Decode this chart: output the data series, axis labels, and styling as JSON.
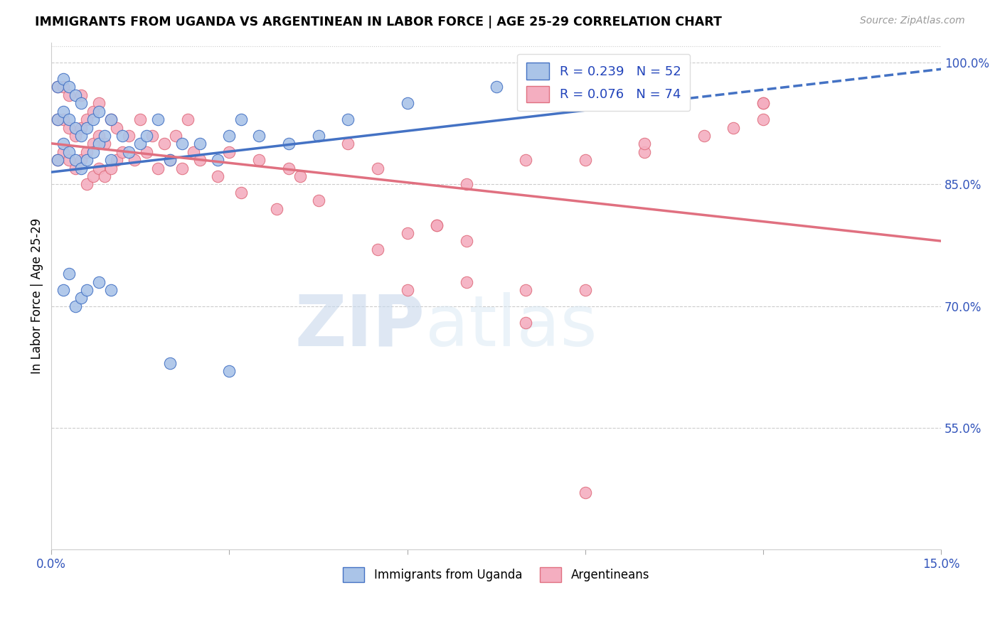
{
  "title": "IMMIGRANTS FROM UGANDA VS ARGENTINEAN IN LABOR FORCE | AGE 25-29 CORRELATION CHART",
  "source": "Source: ZipAtlas.com",
  "ylabel": "In Labor Force | Age 25-29",
  "x_min": 0.0,
  "x_max": 0.15,
  "y_min": 0.4,
  "y_max": 1.025,
  "x_ticks": [
    0.0,
    0.03,
    0.06,
    0.09,
    0.12,
    0.15
  ],
  "y_ticks_right": [
    0.55,
    0.7,
    0.85,
    1.0
  ],
  "y_tick_labels_right": [
    "55.0%",
    "70.0%",
    "85.0%",
    "100.0%"
  ],
  "color_uganda": "#aac4e8",
  "color_argentina": "#f4aec0",
  "color_line_uganda": "#4472c4",
  "color_line_argentina": "#e07080",
  "watermark_zip": "ZIP",
  "watermark_atlas": "atlas",
  "label_uganda": "Immigrants from Uganda",
  "label_argentina": "Argentineans",
  "uganda_x": [
    0.001,
    0.001,
    0.001,
    0.002,
    0.002,
    0.002,
    0.003,
    0.003,
    0.003,
    0.004,
    0.004,
    0.004,
    0.005,
    0.005,
    0.005,
    0.006,
    0.006,
    0.007,
    0.007,
    0.008,
    0.008,
    0.009,
    0.01,
    0.01,
    0.012,
    0.013,
    0.015,
    0.016,
    0.018,
    0.02,
    0.022,
    0.025,
    0.028,
    0.03,
    0.032,
    0.035,
    0.04,
    0.045,
    0.05,
    0.06,
    0.075,
    0.09,
    0.105,
    0.002,
    0.003,
    0.004,
    0.005,
    0.006,
    0.008,
    0.01,
    0.02,
    0.03
  ],
  "uganda_y": [
    0.88,
    0.93,
    0.97,
    0.9,
    0.94,
    0.98,
    0.89,
    0.93,
    0.97,
    0.88,
    0.92,
    0.96,
    0.87,
    0.91,
    0.95,
    0.88,
    0.92,
    0.89,
    0.93,
    0.9,
    0.94,
    0.91,
    0.88,
    0.93,
    0.91,
    0.89,
    0.9,
    0.91,
    0.93,
    0.88,
    0.9,
    0.9,
    0.88,
    0.91,
    0.93,
    0.91,
    0.9,
    0.91,
    0.93,
    0.95,
    0.97,
    0.97,
    0.95,
    0.72,
    0.74,
    0.7,
    0.71,
    0.72,
    0.73,
    0.72,
    0.63,
    0.62
  ],
  "argentina_x": [
    0.001,
    0.001,
    0.001,
    0.002,
    0.002,
    0.002,
    0.003,
    0.003,
    0.003,
    0.004,
    0.004,
    0.005,
    0.005,
    0.005,
    0.006,
    0.006,
    0.006,
    0.007,
    0.007,
    0.007,
    0.008,
    0.008,
    0.008,
    0.009,
    0.009,
    0.01,
    0.01,
    0.011,
    0.011,
    0.012,
    0.013,
    0.014,
    0.015,
    0.016,
    0.017,
    0.018,
    0.019,
    0.02,
    0.021,
    0.022,
    0.023,
    0.024,
    0.025,
    0.028,
    0.03,
    0.032,
    0.035,
    0.038,
    0.04,
    0.042,
    0.045,
    0.05,
    0.055,
    0.06,
    0.065,
    0.07,
    0.08,
    0.09,
    0.1,
    0.11,
    0.12,
    0.12,
    0.12,
    0.065,
    0.07,
    0.08,
    0.09,
    0.1,
    0.055,
    0.06,
    0.07,
    0.08,
    0.09,
    0.115
  ],
  "argentina_y": [
    0.88,
    0.93,
    0.97,
    0.89,
    0.93,
    0.97,
    0.88,
    0.92,
    0.96,
    0.87,
    0.91,
    0.88,
    0.92,
    0.96,
    0.85,
    0.89,
    0.93,
    0.86,
    0.9,
    0.94,
    0.87,
    0.91,
    0.95,
    0.86,
    0.9,
    0.87,
    0.93,
    0.88,
    0.92,
    0.89,
    0.91,
    0.88,
    0.93,
    0.89,
    0.91,
    0.87,
    0.9,
    0.88,
    0.91,
    0.87,
    0.93,
    0.89,
    0.88,
    0.86,
    0.89,
    0.84,
    0.88,
    0.82,
    0.87,
    0.86,
    0.83,
    0.9,
    0.87,
    0.72,
    0.8,
    0.73,
    0.72,
    0.72,
    0.89,
    0.91,
    0.95,
    0.93,
    0.95,
    0.8,
    0.85,
    0.88,
    0.88,
    0.9,
    0.77,
    0.79,
    0.78,
    0.68,
    0.47,
    0.92
  ]
}
